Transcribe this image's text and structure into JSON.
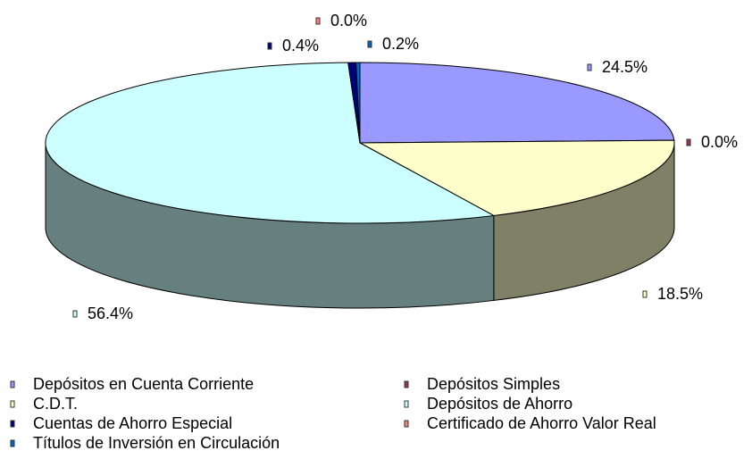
{
  "chart_data": {
    "type": "pie3d",
    "series": [
      {
        "name": "Depósitos en Cuenta Corriente",
        "color": "#9999ff",
        "value": 24.5,
        "value_label": "24.5%"
      },
      {
        "name": "Depósitos Simples",
        "color": "#993366",
        "value": 0,
        "value_label": "0.0%"
      },
      {
        "name": "C.D.T.",
        "color": "#ffffcc",
        "value": 18.5,
        "value_label": "18.5%"
      },
      {
        "name": "Depósitos de Ahorro",
        "color": "#ccffff",
        "value": 56.4,
        "value_label": "56.4%"
      },
      {
        "name": "Cuentas de Ahorro Especial",
        "color": "#000080",
        "value": 0.4,
        "value_label": "0.4%"
      },
      {
        "name": "Certificado de Ahorro Valor Real",
        "color": "#ff8080",
        "value": 0,
        "value_label": "0.0%"
      },
      {
        "name": "Títulos de Inversión en Circulación",
        "color": "#0066cc",
        "value": 0.2,
        "value_label": "0.2%"
      }
    ]
  }
}
